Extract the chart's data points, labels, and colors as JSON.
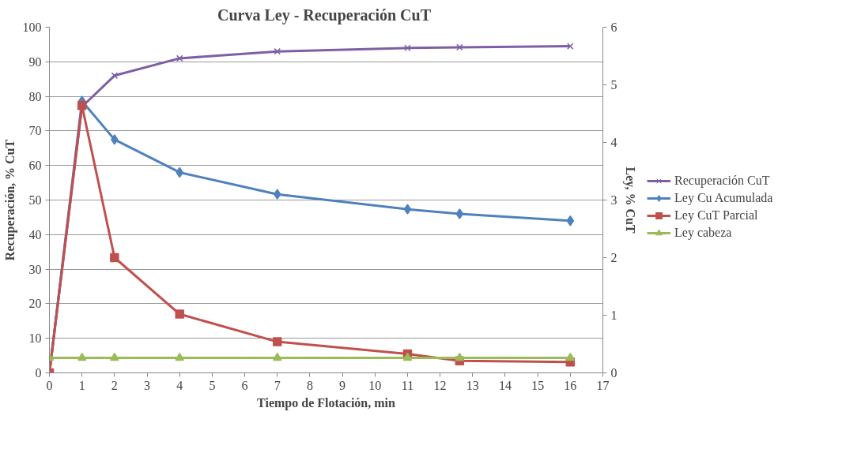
{
  "chart_data": {
    "type": "line",
    "title": "Curva Ley - Recuperación  CuT",
    "xlabel": "Tiempo de Flotación, min",
    "ylabel": "Recuperación, % CuT",
    "y2label": "Ley, % CuT",
    "x": [
      0,
      1,
      2,
      4,
      7,
      11,
      12.6,
      16
    ],
    "series": [
      {
        "name": "Recuperación CuT",
        "color": "#7e5fa6",
        "marker": "cross",
        "values": [
          0,
          77,
          86,
          91,
          93,
          94,
          94.2,
          94.5
        ]
      },
      {
        "name": "Ley Cu Acumulada",
        "color": "#4f81bd",
        "marker": "diamond",
        "axis": "y2",
        "values": [
          0,
          4.72,
          4.05,
          3.48,
          3.1,
          2.84,
          2.76,
          2.64
        ]
      },
      {
        "name": "Ley CuT Parcial",
        "color": "#c0504d",
        "marker": "square",
        "axis": "y2",
        "values": [
          0,
          4.64,
          2.0,
          1.02,
          0.54,
          0.33,
          0.21,
          0.19
        ]
      },
      {
        "name": "Ley cabeza",
        "color": "#9bbb59",
        "marker": "triangle",
        "axis": "y2",
        "values": [
          0.26,
          0.26,
          0.26,
          0.26,
          0.26,
          0.26,
          0.26,
          0.26
        ]
      }
    ],
    "xlim": [
      0,
      17
    ],
    "xticks": [
      0,
      1,
      2,
      3,
      4,
      5,
      6,
      7,
      8,
      9,
      10,
      11,
      12,
      13,
      14,
      15,
      16,
      17
    ],
    "ylim": [
      0,
      100
    ],
    "yticks": [
      0,
      10,
      20,
      30,
      40,
      50,
      60,
      70,
      80,
      90,
      100
    ],
    "y2lim": [
      0,
      6
    ],
    "y2ticks": [
      0,
      1,
      2,
      3,
      4,
      5,
      6
    ],
    "grid": "y",
    "legend": "right"
  }
}
